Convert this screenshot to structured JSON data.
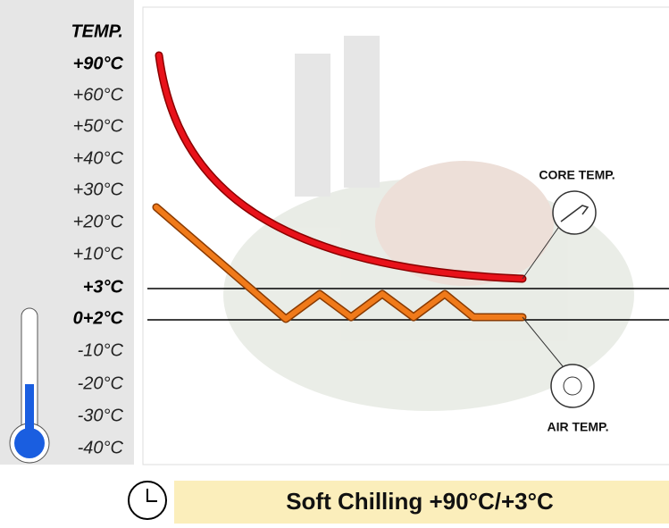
{
  "axis": {
    "title": "TEMP.",
    "labels": [
      "+90°C",
      "+60°C",
      "+50°C",
      "+40°C",
      "+30°C",
      "+20°C",
      "+10°C",
      "+3°C",
      "0+2°C",
      "-10°C",
      "-20°C",
      "-30°C",
      "-40°C"
    ]
  },
  "callouts": {
    "core": "CORE TEMP.",
    "air": "AIR TEMP."
  },
  "footer": {
    "title": "Soft Chilling +90°C/+3°C"
  }
}
